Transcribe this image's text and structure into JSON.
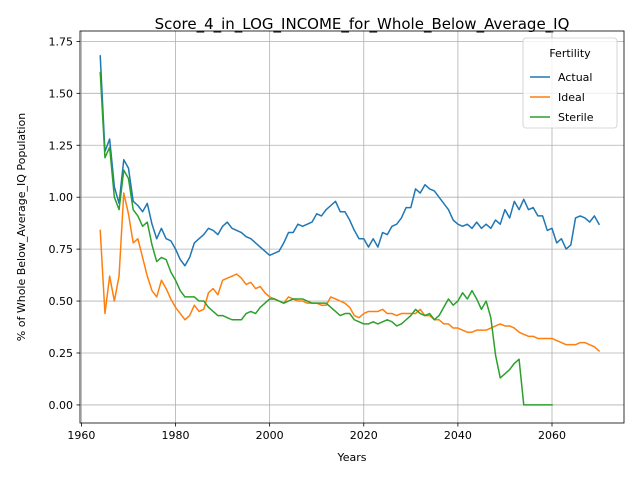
{
  "chart_data": {
    "type": "line",
    "title": "Score_4_in_LOG_INCOME_for_Whole_Below_Average_IQ",
    "xlabel": "Years",
    "ylabel": "% of Whole Below_Average_IQ Population",
    "xlim": [
      1959.7,
      2075.3
    ],
    "ylim": [
      -0.087,
      1.8
    ],
    "xticks": [
      1960,
      1980,
      2000,
      2020,
      2040,
      2060
    ],
    "yticks": [
      0.0,
      0.25,
      0.5,
      0.75,
      1.0,
      1.25,
      1.5,
      1.75
    ],
    "ytick_labels": [
      "0.00",
      "0.25",
      "0.50",
      "0.75",
      "1.00",
      "1.25",
      "1.50",
      "1.75"
    ],
    "grid": true,
    "legend": {
      "title": "Fertility",
      "position": "top-right"
    },
    "series": [
      {
        "name": "Actual",
        "color": "#1f77b4",
        "x": [
          1964,
          1965,
          1966,
          1967,
          1968,
          1969,
          1970,
          1971,
          1972,
          1973,
          1974,
          1975,
          1976,
          1977,
          1978,
          1979,
          1980,
          1981,
          1982,
          1983,
          1984,
          1985,
          1986,
          1987,
          1988,
          1989,
          1990,
          1991,
          1992,
          1993,
          1994,
          1995,
          1996,
          1997,
          1998,
          1999,
          2000,
          2001,
          2002,
          2003,
          2004,
          2005,
          2006,
          2007,
          2008,
          2009,
          2010,
          2011,
          2012,
          2013,
          2014,
          2015,
          2016,
          2017,
          2018,
          2019,
          2020,
          2021,
          2022,
          2023,
          2024,
          2025,
          2026,
          2027,
          2028,
          2029,
          2030,
          2031,
          2032,
          2033,
          2034,
          2035,
          2036,
          2037,
          2038,
          2039,
          2040,
          2041,
          2042,
          2043,
          2044,
          2045,
          2046,
          2047,
          2048,
          2049,
          2050,
          2051,
          2052,
          2053,
          2054,
          2055,
          2056,
          2057,
          2058,
          2059,
          2060,
          2061,
          2062,
          2063,
          2064,
          2065,
          2066,
          2067,
          2068,
          2069,
          2070
        ],
        "values": [
          1.68,
          1.22,
          1.28,
          1.05,
          0.97,
          1.18,
          1.14,
          0.98,
          0.96,
          0.93,
          0.97,
          0.87,
          0.8,
          0.85,
          0.8,
          0.79,
          0.75,
          0.7,
          0.67,
          0.71,
          0.78,
          0.8,
          0.82,
          0.85,
          0.84,
          0.82,
          0.86,
          0.88,
          0.85,
          0.84,
          0.83,
          0.81,
          0.8,
          0.78,
          0.76,
          0.74,
          0.72,
          0.73,
          0.74,
          0.78,
          0.83,
          0.83,
          0.87,
          0.86,
          0.87,
          0.88,
          0.92,
          0.91,
          0.94,
          0.96,
          0.98,
          0.93,
          0.93,
          0.89,
          0.84,
          0.8,
          0.8,
          0.76,
          0.8,
          0.76,
          0.83,
          0.82,
          0.86,
          0.87,
          0.9,
          0.95,
          0.95,
          1.04,
          1.02,
          1.06,
          1.04,
          1.03,
          1.0,
          0.97,
          0.94,
          0.89,
          0.87,
          0.86,
          0.87,
          0.85,
          0.88,
          0.85,
          0.87,
          0.85,
          0.89,
          0.87,
          0.94,
          0.9,
          0.98,
          0.94,
          0.99,
          0.94,
          0.95,
          0.91,
          0.91,
          0.84,
          0.85,
          0.78,
          0.8,
          0.75,
          0.77,
          0.9,
          0.91,
          0.9,
          0.88,
          0.91,
          0.87
        ]
      },
      {
        "name": "Ideal",
        "color": "#ff7f0e",
        "x": [
          1964,
          1965,
          1966,
          1967,
          1968,
          1969,
          1970,
          1971,
          1972,
          1973,
          1974,
          1975,
          1976,
          1977,
          1978,
          1979,
          1980,
          1981,
          1982,
          1983,
          1984,
          1985,
          1986,
          1987,
          1988,
          1989,
          1990,
          1991,
          1992,
          1993,
          1994,
          1995,
          1996,
          1997,
          1998,
          1999,
          2000,
          2001,
          2002,
          2003,
          2004,
          2005,
          2006,
          2007,
          2008,
          2009,
          2010,
          2011,
          2012,
          2013,
          2014,
          2015,
          2016,
          2017,
          2018,
          2019,
          2020,
          2021,
          2022,
          2023,
          2024,
          2025,
          2026,
          2027,
          2028,
          2029,
          2030,
          2031,
          2032,
          2033,
          2034,
          2035,
          2036,
          2037,
          2038,
          2039,
          2040,
          2041,
          2042,
          2043,
          2044,
          2045,
          2046,
          2047,
          2048,
          2049,
          2050,
          2051,
          2052,
          2053,
          2054,
          2055,
          2056,
          2057,
          2058,
          2059,
          2060,
          2061,
          2062,
          2063,
          2064,
          2065,
          2066,
          2067,
          2068,
          2069,
          2070
        ],
        "values": [
          0.84,
          0.44,
          0.62,
          0.5,
          0.62,
          1.02,
          0.92,
          0.78,
          0.8,
          0.71,
          0.62,
          0.55,
          0.52,
          0.6,
          0.56,
          0.51,
          0.47,
          0.44,
          0.41,
          0.43,
          0.48,
          0.45,
          0.46,
          0.54,
          0.56,
          0.53,
          0.6,
          0.61,
          0.62,
          0.63,
          0.61,
          0.58,
          0.59,
          0.56,
          0.57,
          0.54,
          0.52,
          0.51,
          0.5,
          0.49,
          0.52,
          0.51,
          0.5,
          0.5,
          0.49,
          0.49,
          0.49,
          0.48,
          0.48,
          0.52,
          0.51,
          0.5,
          0.49,
          0.47,
          0.43,
          0.42,
          0.44,
          0.45,
          0.45,
          0.45,
          0.46,
          0.44,
          0.44,
          0.43,
          0.44,
          0.44,
          0.44,
          0.44,
          0.46,
          0.43,
          0.43,
          0.41,
          0.41,
          0.39,
          0.39,
          0.37,
          0.37,
          0.36,
          0.35,
          0.35,
          0.36,
          0.36,
          0.36,
          0.37,
          0.38,
          0.39,
          0.38,
          0.38,
          0.37,
          0.35,
          0.34,
          0.33,
          0.33,
          0.32,
          0.32,
          0.32,
          0.32,
          0.31,
          0.3,
          0.29,
          0.29,
          0.29,
          0.3,
          0.3,
          0.29,
          0.28,
          0.26
        ]
      },
      {
        "name": "Sterile",
        "color": "#2ca02c",
        "x": [
          1964,
          1965,
          1966,
          1967,
          1968,
          1969,
          1970,
          1971,
          1972,
          1973,
          1974,
          1975,
          1976,
          1977,
          1978,
          1979,
          1980,
          1981,
          1982,
          1983,
          1984,
          1985,
          1986,
          1987,
          1988,
          1989,
          1990,
          1991,
          1992,
          1993,
          1994,
          1995,
          1996,
          1997,
          1998,
          1999,
          2000,
          2001,
          2002,
          2003,
          2004,
          2005,
          2006,
          2007,
          2008,
          2009,
          2010,
          2011,
          2012,
          2013,
          2014,
          2015,
          2016,
          2017,
          2018,
          2019,
          2020,
          2021,
          2022,
          2023,
          2024,
          2025,
          2026,
          2027,
          2028,
          2029,
          2030,
          2031,
          2032,
          2033,
          2034,
          2035,
          2036,
          2037,
          2038,
          2039,
          2040,
          2041,
          2042,
          2043,
          2044,
          2045,
          2046,
          2047,
          2048,
          2049,
          2050,
          2051,
          2052,
          2053,
          2054,
          2055,
          2056,
          2057,
          2058,
          2059,
          2060
        ],
        "values": [
          1.6,
          1.19,
          1.24,
          1.0,
          0.94,
          1.13,
          1.09,
          0.94,
          0.91,
          0.86,
          0.88,
          0.77,
          0.69,
          0.71,
          0.7,
          0.64,
          0.6,
          0.55,
          0.52,
          0.52,
          0.52,
          0.5,
          0.5,
          0.47,
          0.45,
          0.43,
          0.43,
          0.42,
          0.41,
          0.41,
          0.41,
          0.44,
          0.45,
          0.44,
          0.47,
          0.49,
          0.51,
          0.51,
          0.5,
          0.49,
          0.5,
          0.51,
          0.51,
          0.51,
          0.5,
          0.49,
          0.49,
          0.49,
          0.49,
          0.47,
          0.45,
          0.43,
          0.44,
          0.44,
          0.41,
          0.4,
          0.39,
          0.39,
          0.4,
          0.39,
          0.4,
          0.41,
          0.4,
          0.38,
          0.39,
          0.41,
          0.43,
          0.46,
          0.44,
          0.43,
          0.44,
          0.41,
          0.43,
          0.47,
          0.51,
          0.48,
          0.5,
          0.54,
          0.51,
          0.55,
          0.51,
          0.46,
          0.5,
          0.42,
          0.24,
          0.13,
          0.15,
          0.17,
          0.2,
          0.22,
          0.0,
          0.0,
          0.0,
          0.0,
          0.0,
          0.0,
          0.0
        ]
      }
    ]
  }
}
